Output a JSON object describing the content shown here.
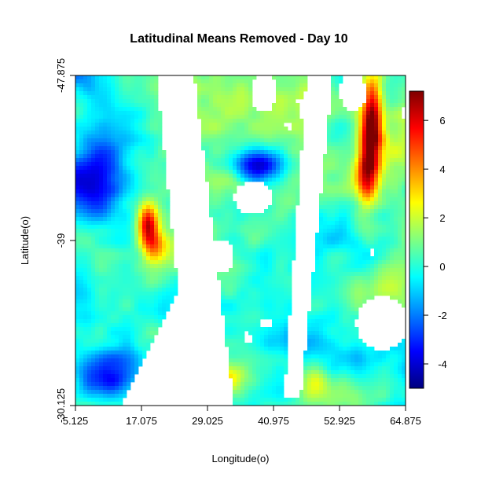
{
  "chart_data": {
    "type": "heatmap",
    "title": "Latitudinal Means Removed - Day 10",
    "xlabel": "Longitude(o)",
    "ylabel": "Latitude(o)",
    "xlim": [
      5.125,
      64.875
    ],
    "ylim": [
      -47.875,
      -30.125
    ],
    "y_axis_top": -47.875,
    "y_axis_bottom": -30.125,
    "xticks": [
      "5.125",
      "17.075",
      "29.025",
      "40.975",
      "52.925",
      "64.875"
    ],
    "yticks": [
      "-47.875",
      "-39",
      "-30.125"
    ],
    "colorbar": {
      "range": [
        -5,
        7.2
      ],
      "ticks": [
        -4,
        -2,
        0,
        2,
        4,
        6
      ],
      "tick_labels": [
        "-4",
        "-2",
        "0",
        "2",
        "4",
        "6"
      ],
      "colormap": [
        "#00007f",
        "#0000ff",
        "#0080ff",
        "#00ffff",
        "#80ff80",
        "#ffff00",
        "#ff8000",
        "#ff0000",
        "#7f0000"
      ]
    }
  }
}
